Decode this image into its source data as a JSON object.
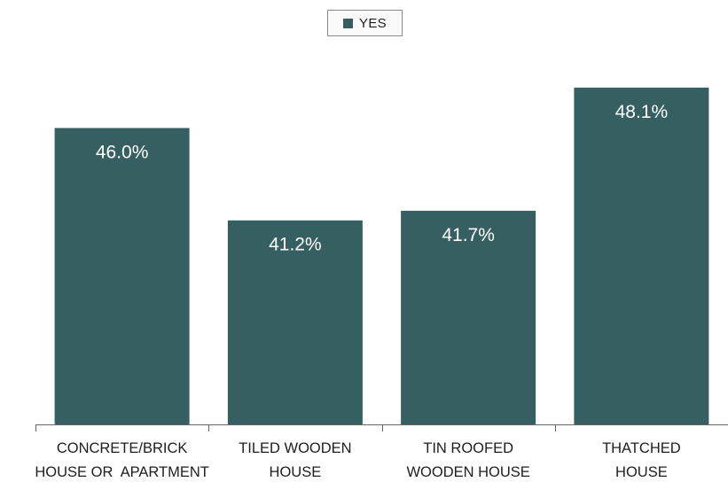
{
  "chart_data": {
    "type": "bar",
    "categories": [
      [
        "CONCRETE/BRICK",
        "HOUSE OR  APARTMENT"
      ],
      [
        "TILED WOODEN",
        "HOUSE"
      ],
      [
        "TIN ROOFED",
        "WOODEN HOUSE"
      ],
      [
        "THATCHED",
        "HOUSE"
      ]
    ],
    "series": [
      {
        "name": "YES",
        "values": [
          46.0,
          41.2,
          41.7,
          48.1
        ],
        "labels": [
          "46.0%",
          "41.2%",
          "41.7%",
          "48.1%"
        ]
      }
    ],
    "ylim": [
      30.6,
      48.6
    ],
    "colors": {
      "bar": "#355f61",
      "axis": "#666666"
    },
    "legend_position": "top-center",
    "grid": false
  }
}
